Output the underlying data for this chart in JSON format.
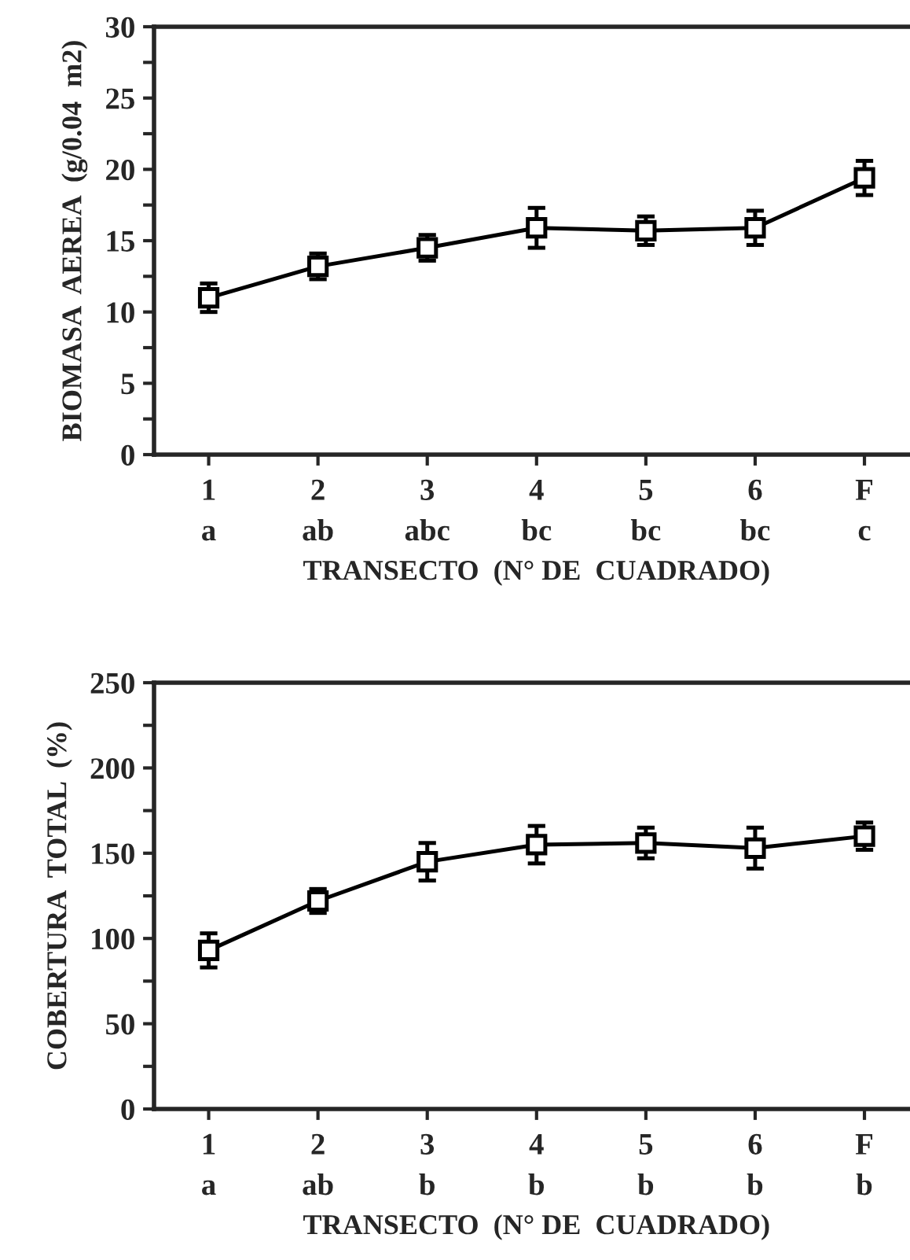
{
  "chart_data": [
    {
      "type": "line",
      "ylabel": "BIOMASA  AEREA  (g/0.04  m2)",
      "xlabel": "TRANSECTO  (N° DE  CUADRADO)",
      "categories": [
        "1\na",
        "2\nab",
        "3\nabc",
        "4\nbc",
        "5\nbc",
        "6\nbc",
        "F\nc"
      ],
      "series": [
        {
          "color": "#000000",
          "values": [
            11.0,
            13.2,
            14.5,
            15.9,
            15.7,
            15.9,
            19.4
          ],
          "errors": [
            1.0,
            0.9,
            0.9,
            1.4,
            1.0,
            1.2,
            1.2
          ]
        }
      ],
      "ylim": [
        0,
        30
      ],
      "yticks": [
        0,
        {
          "value": 2.5,
          "label": null
        },
        5,
        {
          "value": 7.5,
          "label": null
        },
        10,
        {
          "value": 12.5,
          "label": null
        },
        15,
        {
          "value": 17.5,
          "label": null
        },
        20,
        {
          "value": 22.5,
          "label": null
        },
        25,
        {
          "value": 27.5,
          "label": null
        },
        30
      ],
      "marker": "square",
      "line_style": "solid",
      "grid": false,
      "legend": false
    },
    {
      "type": "line",
      "ylabel": "COBERTURA  TOTAL  (%)",
      "xlabel": "TRANSECTO  (N° DE  CUADRADO)",
      "categories": [
        "1\na",
        "2\nab",
        "3\nb",
        "4\nb",
        "5\nb",
        "6\nb",
        "F\nb"
      ],
      "series": [
        {
          "color": "#000000",
          "values": [
            93,
            122,
            145,
            155,
            156,
            153,
            160
          ],
          "errors": [
            10,
            7,
            11,
            11,
            9,
            12,
            8
          ]
        }
      ],
      "ylim": [
        0,
        250
      ],
      "yticks": [
        0,
        {
          "value": 25,
          "label": null
        },
        50,
        {
          "value": 75,
          "label": null
        },
        100,
        {
          "value": 125,
          "label": null
        },
        150,
        {
          "value": 175,
          "label": null
        },
        200,
        {
          "value": 225,
          "label": null
        },
        250
      ],
      "marker": "square",
      "line_style": "solid",
      "grid": false,
      "legend": false
    }
  ]
}
